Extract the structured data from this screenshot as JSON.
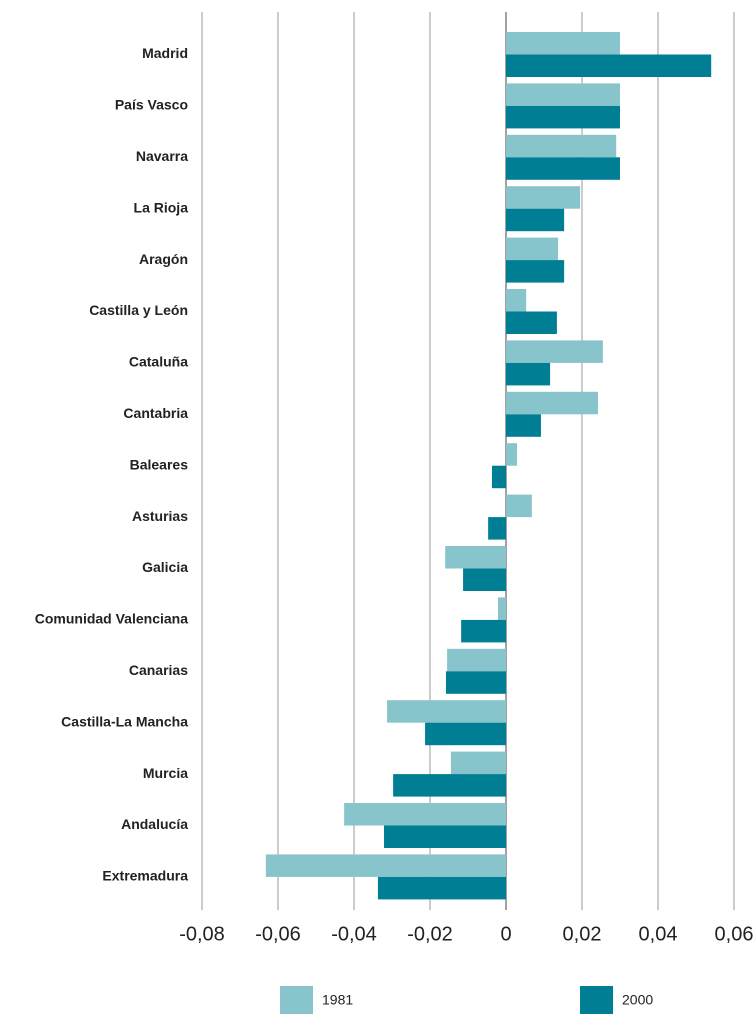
{
  "chart_data": {
    "type": "bar",
    "orientation": "horizontal",
    "categories": [
      "Madrid",
      "País Vasco",
      "Navarra",
      "La Rioja",
      "Aragón",
      "Castilla y León",
      "Cataluña",
      "Cantabria",
      "Baleares",
      "Asturias",
      "Galicia",
      "Comunidad Valenciana",
      "Canarias",
      "Castilla-La Mancha",
      "Murcia",
      "Andalucía",
      "Extremadura"
    ],
    "series": [
      {
        "name": "1981",
        "color": "#88c4cc",
        "values": [
          0.03,
          0.03,
          0.029,
          0.0195,
          0.0137,
          0.0053,
          0.0255,
          0.0242,
          0.0029,
          0.0068,
          -0.016,
          -0.0021,
          -0.0155,
          -0.0313,
          -0.0145,
          -0.0426,
          -0.0632
        ]
      },
      {
        "name": "2000",
        "color": "#007f94",
        "values": [
          0.054,
          0.03,
          0.03,
          0.0153,
          0.0153,
          0.0134,
          0.0116,
          0.0092,
          -0.0037,
          -0.0047,
          -0.0113,
          -0.0118,
          -0.0158,
          -0.0213,
          -0.0297,
          -0.0321,
          -0.0337
        ]
      }
    ],
    "xlim": [
      -0.08,
      0.06
    ],
    "xticks": [
      {
        "value": -0.08,
        "label": "-0,08"
      },
      {
        "value": -0.06,
        "label": "-0,06"
      },
      {
        "value": -0.04,
        "label": "-0,04"
      },
      {
        "value": -0.02,
        "label": "-0,02"
      },
      0,
      {
        "value": 0.02,
        "label": "0,02"
      },
      {
        "value": 0.04,
        "label": "0,04"
      },
      {
        "value": 0.06,
        "label": "0,06"
      }
    ],
    "grid": true,
    "legend": "bottom"
  }
}
